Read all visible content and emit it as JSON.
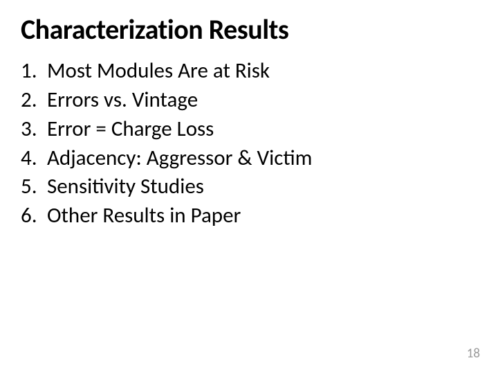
{
  "title": "Characterization Results",
  "items": [
    {
      "num": "1.",
      "text": "Most Modules Are at Risk"
    },
    {
      "num": "2.",
      "text": "Errors vs. Vintage"
    },
    {
      "num": "3.",
      "text": "Error = Charge Loss"
    },
    {
      "num": "4.",
      "text": "Adjacency: Aggressor & Victim"
    },
    {
      "num": "5.",
      "text": "Sensitivity Studies"
    },
    {
      "num": "6.",
      "text": "Other Results in Paper"
    }
  ],
  "page_number": "18",
  "colors": {
    "text": "#000000",
    "page_number": "#9b9b9b",
    "background": "#ffffff"
  },
  "typography": {
    "title_fontsize": 40,
    "title_weight": 700,
    "body_fontsize": 31,
    "body_weight": 400,
    "pagenum_fontsize": 19,
    "font_family": "Calibri"
  }
}
